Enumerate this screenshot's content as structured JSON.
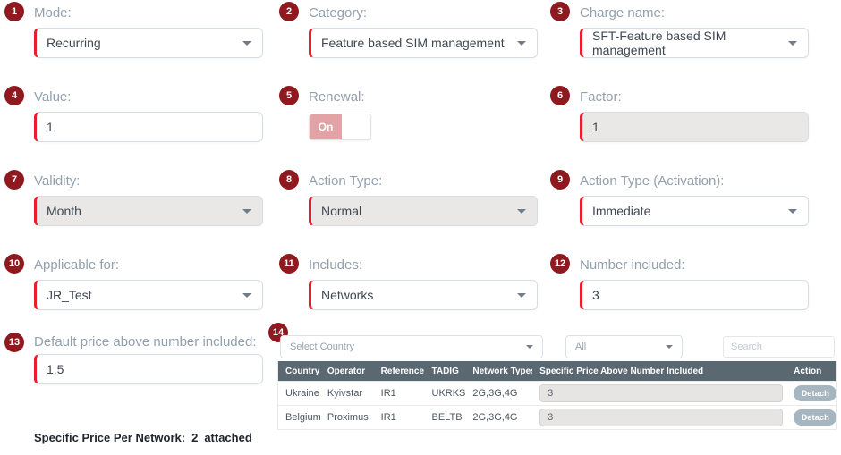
{
  "colors": {
    "accent_red": "#ea1d2c",
    "badge_bg": "#8e1a20",
    "label_text": "#93a0ad",
    "toggle_on_bg": "#e2a3a7",
    "table_header_bg": "#5a6872",
    "detach_button_bg": "#a5b6c1",
    "disabled_bg": "#eae8e7"
  },
  "fields": [
    {
      "num": "1",
      "label": "Mode:",
      "type": "select",
      "value": "Recurring",
      "disabled": false
    },
    {
      "num": "2",
      "label": "Category:",
      "type": "select",
      "value": "Feature based SIM management",
      "disabled": false
    },
    {
      "num": "3",
      "label": "Charge name:",
      "type": "select",
      "value": "SFT-Feature based SIM management",
      "disabled": false
    },
    {
      "num": "4",
      "label": "Value:",
      "type": "input",
      "value": "1",
      "disabled": false
    },
    {
      "num": "5",
      "label": "Renewal:",
      "type": "toggle",
      "value": "On",
      "disabled": false
    },
    {
      "num": "6",
      "label": "Factor:",
      "type": "input",
      "value": "1",
      "disabled": true
    },
    {
      "num": "7",
      "label": "Validity:",
      "type": "select",
      "value": "Month",
      "disabled": true
    },
    {
      "num": "8",
      "label": "Action Type:",
      "type": "select",
      "value": "Normal",
      "disabled": true
    },
    {
      "num": "9",
      "label": "Action Type (Activation):",
      "type": "select",
      "value": "Immediate",
      "disabled": false
    },
    {
      "num": "10",
      "label": "Applicable for:",
      "type": "select",
      "value": "JR_Test",
      "disabled": false
    },
    {
      "num": "11",
      "label": "Includes:",
      "type": "select",
      "value": "Networks",
      "disabled": false
    },
    {
      "num": "12",
      "label": "Number included:",
      "type": "input",
      "value": "3",
      "disabled": false
    }
  ],
  "field13": {
    "num": "13",
    "label": "Default price above number included:",
    "value": "1.5"
  },
  "field14": {
    "num": "14",
    "filters": {
      "country_placeholder": "Select Country",
      "all_value": "All",
      "search_placeholder": "Search"
    },
    "table": {
      "headers": [
        "Country",
        "Operator",
        "Reference",
        "TADIG",
        "Network Types",
        "Specific Price Above Number Included",
        "Action"
      ],
      "rows": [
        {
          "country": "Ukraine",
          "operator": "Kyivstar",
          "reference": "IR1",
          "tadig": "UKRKS",
          "network_types": "2G,3G,4G",
          "price": "3",
          "action": "Detach"
        },
        {
          "country": "Belgium",
          "operator": "Proximus",
          "reference": "IR1",
          "tadig": "BELTB",
          "network_types": "2G,3G,4G",
          "price": "3",
          "action": "Detach"
        }
      ]
    }
  },
  "footer": {
    "label": "Specific Price Per Network:",
    "count": "2",
    "suffix": "attached"
  }
}
